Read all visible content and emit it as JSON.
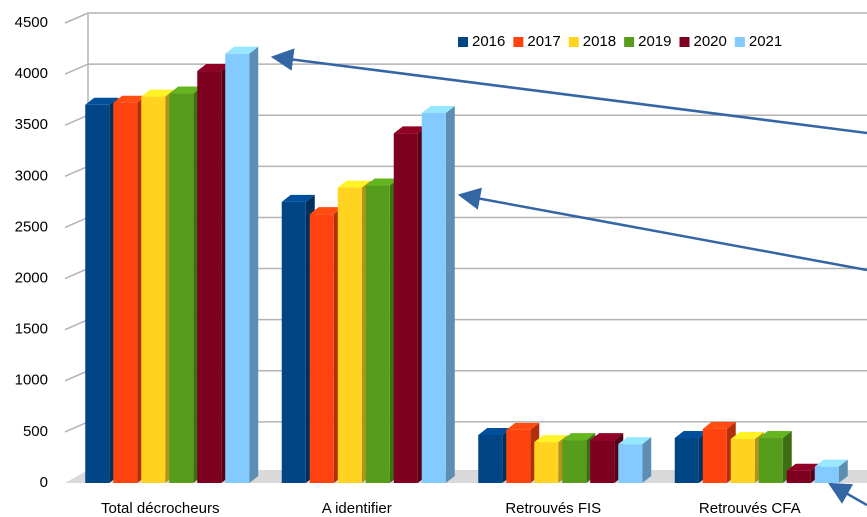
{
  "chart_data": {
    "type": "bar",
    "categories": [
      "Total décrocheurs",
      "A identifier",
      "Retrouvés FIS",
      "Retrouvés CFA"
    ],
    "series": [
      {
        "name": "2016",
        "color": "#004586",
        "values": [
          3700,
          2750,
          470,
          440
        ]
      },
      {
        "name": "2017",
        "color": "#ff420e",
        "values": [
          3720,
          2630,
          520,
          530
        ]
      },
      {
        "name": "2018",
        "color": "#ffd320",
        "values": [
          3780,
          2890,
          400,
          430
        ]
      },
      {
        "name": "2019",
        "color": "#579d1c",
        "values": [
          3810,
          2910,
          420,
          440
        ]
      },
      {
        "name": "2020",
        "color": "#7e0021",
        "values": [
          4030,
          3420,
          420,
          120
        ]
      },
      {
        "name": "2021",
        "color": "#83caff",
        "values": [
          4200,
          3620,
          380,
          160
        ]
      }
    ],
    "ylim": [
      0,
      4500
    ],
    "yticks": [
      0,
      500,
      1000,
      1500,
      2000,
      2500,
      3000,
      3500,
      4000,
      4500
    ],
    "grid": true,
    "legend": "upper right"
  }
}
